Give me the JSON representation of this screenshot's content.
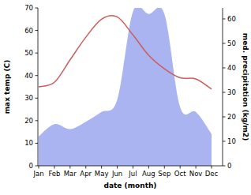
{
  "chart_data": {
    "type": "line",
    "x_label": "date (month)",
    "y_label": "max temp (C)",
    "y2_label": "med. precipitation (kg/m2)",
    "categories": [
      "Jan",
      "Feb",
      "Mar",
      "Apr",
      "May",
      "Jun",
      "Jul",
      "Aug",
      "Sep",
      "Oct",
      "Nov",
      "Dec"
    ],
    "series": [
      {
        "type": "area",
        "axis": "y2",
        "color": "#a9b4f0",
        "values": [
          12,
          17,
          15,
          18,
          22,
          27,
          63,
          62,
          62,
          24,
          22,
          13
        ]
      },
      {
        "type": "line",
        "color": "#cd5c5c",
        "values": [
          35,
          37,
          47,
          57,
          65,
          66,
          58,
          49,
          43,
          39,
          38.5,
          34
        ]
      }
    ],
    "ylim": [
      0,
      70
    ],
    "yticks": [
      0,
      10,
      20,
      30,
      40,
      50,
      60,
      70
    ],
    "y2lim": [
      0,
      64.5
    ],
    "y2ticks": [
      0,
      10,
      20,
      30,
      40,
      50,
      60
    ],
    "grid": false
  }
}
